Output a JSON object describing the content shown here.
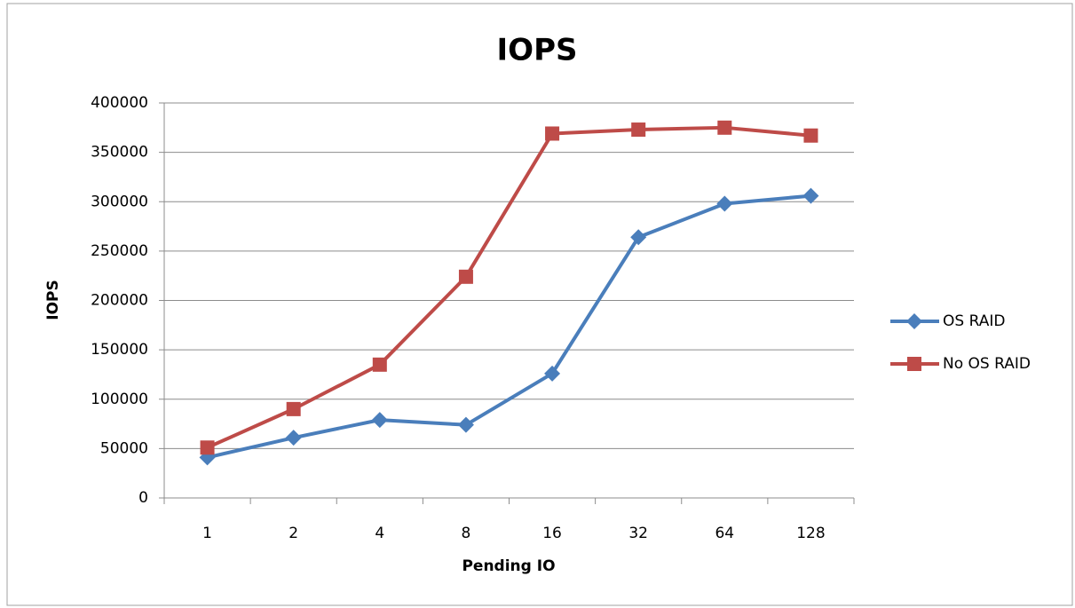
{
  "chart_data": {
    "type": "line",
    "title": "IOPS",
    "x_label": "Pending IO",
    "y_label": "IOPS",
    "categories": [
      "1",
      "2",
      "4",
      "8",
      "16",
      "32",
      "64",
      "128"
    ],
    "series": [
      {
        "name": "OS RAID",
        "color": "#4a7ebb",
        "marker": "diamond",
        "values": [
          41000,
          61000,
          79000,
          74000,
          126000,
          264000,
          298000,
          306000
        ]
      },
      {
        "name": "No OS RAID",
        "color": "#be4b48",
        "marker": "square",
        "values": [
          51000,
          90000,
          135000,
          224000,
          369000,
          373000,
          375000,
          367000
        ]
      }
    ],
    "ylim": [
      0,
      400000
    ],
    "yticks": [
      0,
      50000,
      100000,
      150000,
      200000,
      250000,
      300000,
      350000,
      400000
    ],
    "grid": true,
    "legend": "right"
  }
}
